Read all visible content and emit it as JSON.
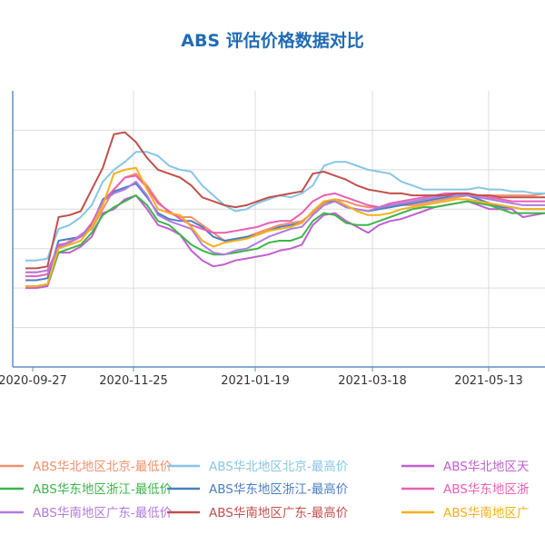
{
  "chart_data": {
    "type": "line",
    "title": "ABS 评估价格数据对比",
    "x_tick_labels": [
      "2020-09-27",
      "2020-11-25",
      "2021-01-19",
      "2021-03-18",
      "2021-05-13"
    ],
    "grid": true,
    "legend_position": "bottom",
    "series": [
      {
        "name": "ABS华北地区北京-最低价",
        "color": "#f0906a",
        "values": [
          3.4,
          3.4,
          3.45,
          4.0,
          4.2,
          4.3,
          4.5,
          5.0,
          5.5,
          5.8,
          5.9,
          5.6,
          5.2,
          4.9,
          4.8,
          4.8,
          4.6,
          4.4,
          4.2,
          4.2,
          4.3,
          4.4,
          4.5,
          4.6,
          4.65,
          4.7,
          4.9,
          5.15,
          5.25,
          5.2,
          5.1,
          5.05,
          5.05,
          5.05,
          5.1,
          5.1,
          5.15,
          5.2,
          5.25,
          5.3,
          5.35,
          5.35,
          5.35,
          5.35,
          5.35,
          5.35,
          5.35,
          5.4
        ]
      },
      {
        "name": "ABS华北地区北京-最高价",
        "color": "#87c6e6",
        "values": [
          3.7,
          3.7,
          3.75,
          4.5,
          4.6,
          4.8,
          5.1,
          5.7,
          6.0,
          6.2,
          6.45,
          6.45,
          6.35,
          6.1,
          6.0,
          5.95,
          5.6,
          5.35,
          5.1,
          4.95,
          5.0,
          5.15,
          5.25,
          5.35,
          5.3,
          5.4,
          5.6,
          6.1,
          6.2,
          6.2,
          6.1,
          6.0,
          5.95,
          5.9,
          5.7,
          5.6,
          5.5,
          5.5,
          5.5,
          5.5,
          5.5,
          5.55,
          5.5,
          5.5,
          5.45,
          5.45,
          5.4,
          5.4
        ]
      },
      {
        "name": "ABS华北地区天津-最低价",
        "color": "#c05fd0",
        "values": [
          3.0,
          3.0,
          3.05,
          3.9,
          3.9,
          4.05,
          4.3,
          4.9,
          5.0,
          5.25,
          5.35,
          5.0,
          4.6,
          4.5,
          4.35,
          3.95,
          3.7,
          3.55,
          3.6,
          3.7,
          3.75,
          3.8,
          3.85,
          3.95,
          4.0,
          4.1,
          4.6,
          4.85,
          4.9,
          4.7,
          4.55,
          4.4,
          4.6,
          4.7,
          4.75,
          4.85,
          4.95,
          5.05,
          5.1,
          5.15,
          5.2,
          5.1,
          5.0,
          5.0,
          5.0,
          4.8,
          4.85,
          4.9
        ]
      },
      {
        "name": "ABS华东地区浙江-最低价",
        "color": "#3cb54a",
        "values": [
          3.05,
          3.05,
          3.1,
          3.9,
          4.0,
          4.1,
          4.4,
          4.85,
          5.05,
          5.2,
          5.35,
          5.1,
          4.7,
          4.6,
          4.35,
          4.1,
          3.95,
          3.85,
          3.85,
          3.9,
          3.95,
          4.0,
          4.15,
          4.2,
          4.2,
          4.3,
          4.7,
          4.9,
          4.85,
          4.65,
          4.6,
          4.6,
          4.7,
          4.8,
          4.9,
          5.0,
          5.05,
          5.05,
          5.1,
          5.15,
          5.2,
          5.15,
          5.1,
          5.0,
          4.9,
          4.9,
          4.9,
          4.9
        ]
      },
      {
        "name": "ABS华东地区浙江-最高价",
        "color": "#4a7fc4",
        "values": [
          3.2,
          3.2,
          3.25,
          4.2,
          4.25,
          4.3,
          4.6,
          5.25,
          5.45,
          5.55,
          5.65,
          5.3,
          4.9,
          4.75,
          4.7,
          4.7,
          4.55,
          4.3,
          4.2,
          4.25,
          4.3,
          4.35,
          4.45,
          4.55,
          4.6,
          4.65,
          4.95,
          5.2,
          5.2,
          5.05,
          5.0,
          4.95,
          5.0,
          5.05,
          5.1,
          5.15,
          5.2,
          5.25,
          5.3,
          5.35,
          5.35,
          5.25,
          5.15,
          5.05,
          5.05,
          5.0,
          5.0,
          5.0
        ]
      },
      {
        "name": "ABS华东地区浙江-最高价",
        "color": "#e85fb5",
        "values": [
          3.3,
          3.3,
          3.35,
          4.1,
          4.15,
          4.3,
          4.65,
          5.2,
          5.5,
          5.8,
          5.85,
          5.55,
          5.15,
          4.95,
          4.75,
          4.6,
          4.5,
          4.4,
          4.4,
          4.45,
          4.5,
          4.55,
          4.65,
          4.7,
          4.7,
          4.9,
          5.2,
          5.35,
          5.4,
          5.3,
          5.2,
          5.1,
          5.05,
          5.15,
          5.2,
          5.25,
          5.3,
          5.35,
          5.4,
          5.4,
          5.4,
          5.35,
          5.3,
          5.25,
          5.2,
          5.2,
          5.2,
          5.2
        ]
      },
      {
        "name": "ABS华南地区广东-最低价",
        "color": "#b07be0",
        "values": [
          3.4,
          3.4,
          3.45,
          4.05,
          4.15,
          4.35,
          4.55,
          5.2,
          5.4,
          5.5,
          5.7,
          5.35,
          4.85,
          4.7,
          4.6,
          4.5,
          4.1,
          3.9,
          3.85,
          3.95,
          4.0,
          4.15,
          4.3,
          4.4,
          4.5,
          4.55,
          4.85,
          5.1,
          5.2,
          5.05,
          5.0,
          4.95,
          5.05,
          5.1,
          5.15,
          5.2,
          5.25,
          5.3,
          5.35,
          5.35,
          5.35,
          5.3,
          5.25,
          5.2,
          5.15,
          5.1,
          5.1,
          5.1
        ]
      },
      {
        "name": "ABS华南地区广东-最高价",
        "color": "#c0504d",
        "values": [
          3.5,
          3.5,
          3.55,
          4.8,
          4.85,
          4.95,
          5.5,
          6.05,
          6.9,
          6.95,
          6.7,
          6.3,
          6.0,
          5.9,
          5.8,
          5.6,
          5.3,
          5.2,
          5.1,
          5.05,
          5.1,
          5.2,
          5.3,
          5.35,
          5.4,
          5.45,
          5.9,
          5.95,
          5.85,
          5.75,
          5.6,
          5.5,
          5.45,
          5.4,
          5.4,
          5.35,
          5.35,
          5.35,
          5.35,
          5.4,
          5.4,
          5.35,
          5.35,
          5.3,
          5.3,
          5.3,
          5.3,
          5.3
        ]
      },
      {
        "name": "ABS华南地区广东-最低价",
        "color": "#f4b019",
        "values": [
          3.05,
          3.05,
          3.1,
          4.0,
          4.1,
          4.2,
          4.55,
          5.1,
          5.9,
          6.0,
          6.05,
          5.5,
          5.0,
          4.9,
          4.85,
          4.55,
          4.2,
          4.05,
          4.15,
          4.2,
          4.25,
          4.35,
          4.45,
          4.5,
          4.55,
          4.65,
          4.95,
          5.2,
          5.25,
          5.1,
          4.95,
          4.85,
          4.85,
          4.9,
          5.0,
          5.05,
          5.1,
          5.15,
          5.2,
          5.25,
          5.25,
          5.2,
          5.15,
          5.1,
          5.05,
          5.0,
          5.0,
          5.0
        ]
      }
    ]
  },
  "legend": [
    [
      "ABS华北地区北京-最低价",
      "#f0906a"
    ],
    [
      "ABS华北地区北京-最高价",
      "#87c6e6"
    ],
    [
      "ABS华北地区天",
      "#c05fd0"
    ],
    [
      "ABS华东地区浙江-最低价",
      "#3cb54a"
    ],
    [
      "ABS华东地区浙江-最高价",
      "#4a7fc4"
    ],
    [
      "ABS华东地区浙",
      "#e85fb5"
    ],
    [
      "ABS华南地区广东-最低价",
      "#b07be0"
    ],
    [
      "ABS华南地区广东-最高价",
      "#c0504d"
    ],
    [
      "ABS华南地区广",
      "#f4b019"
    ]
  ]
}
